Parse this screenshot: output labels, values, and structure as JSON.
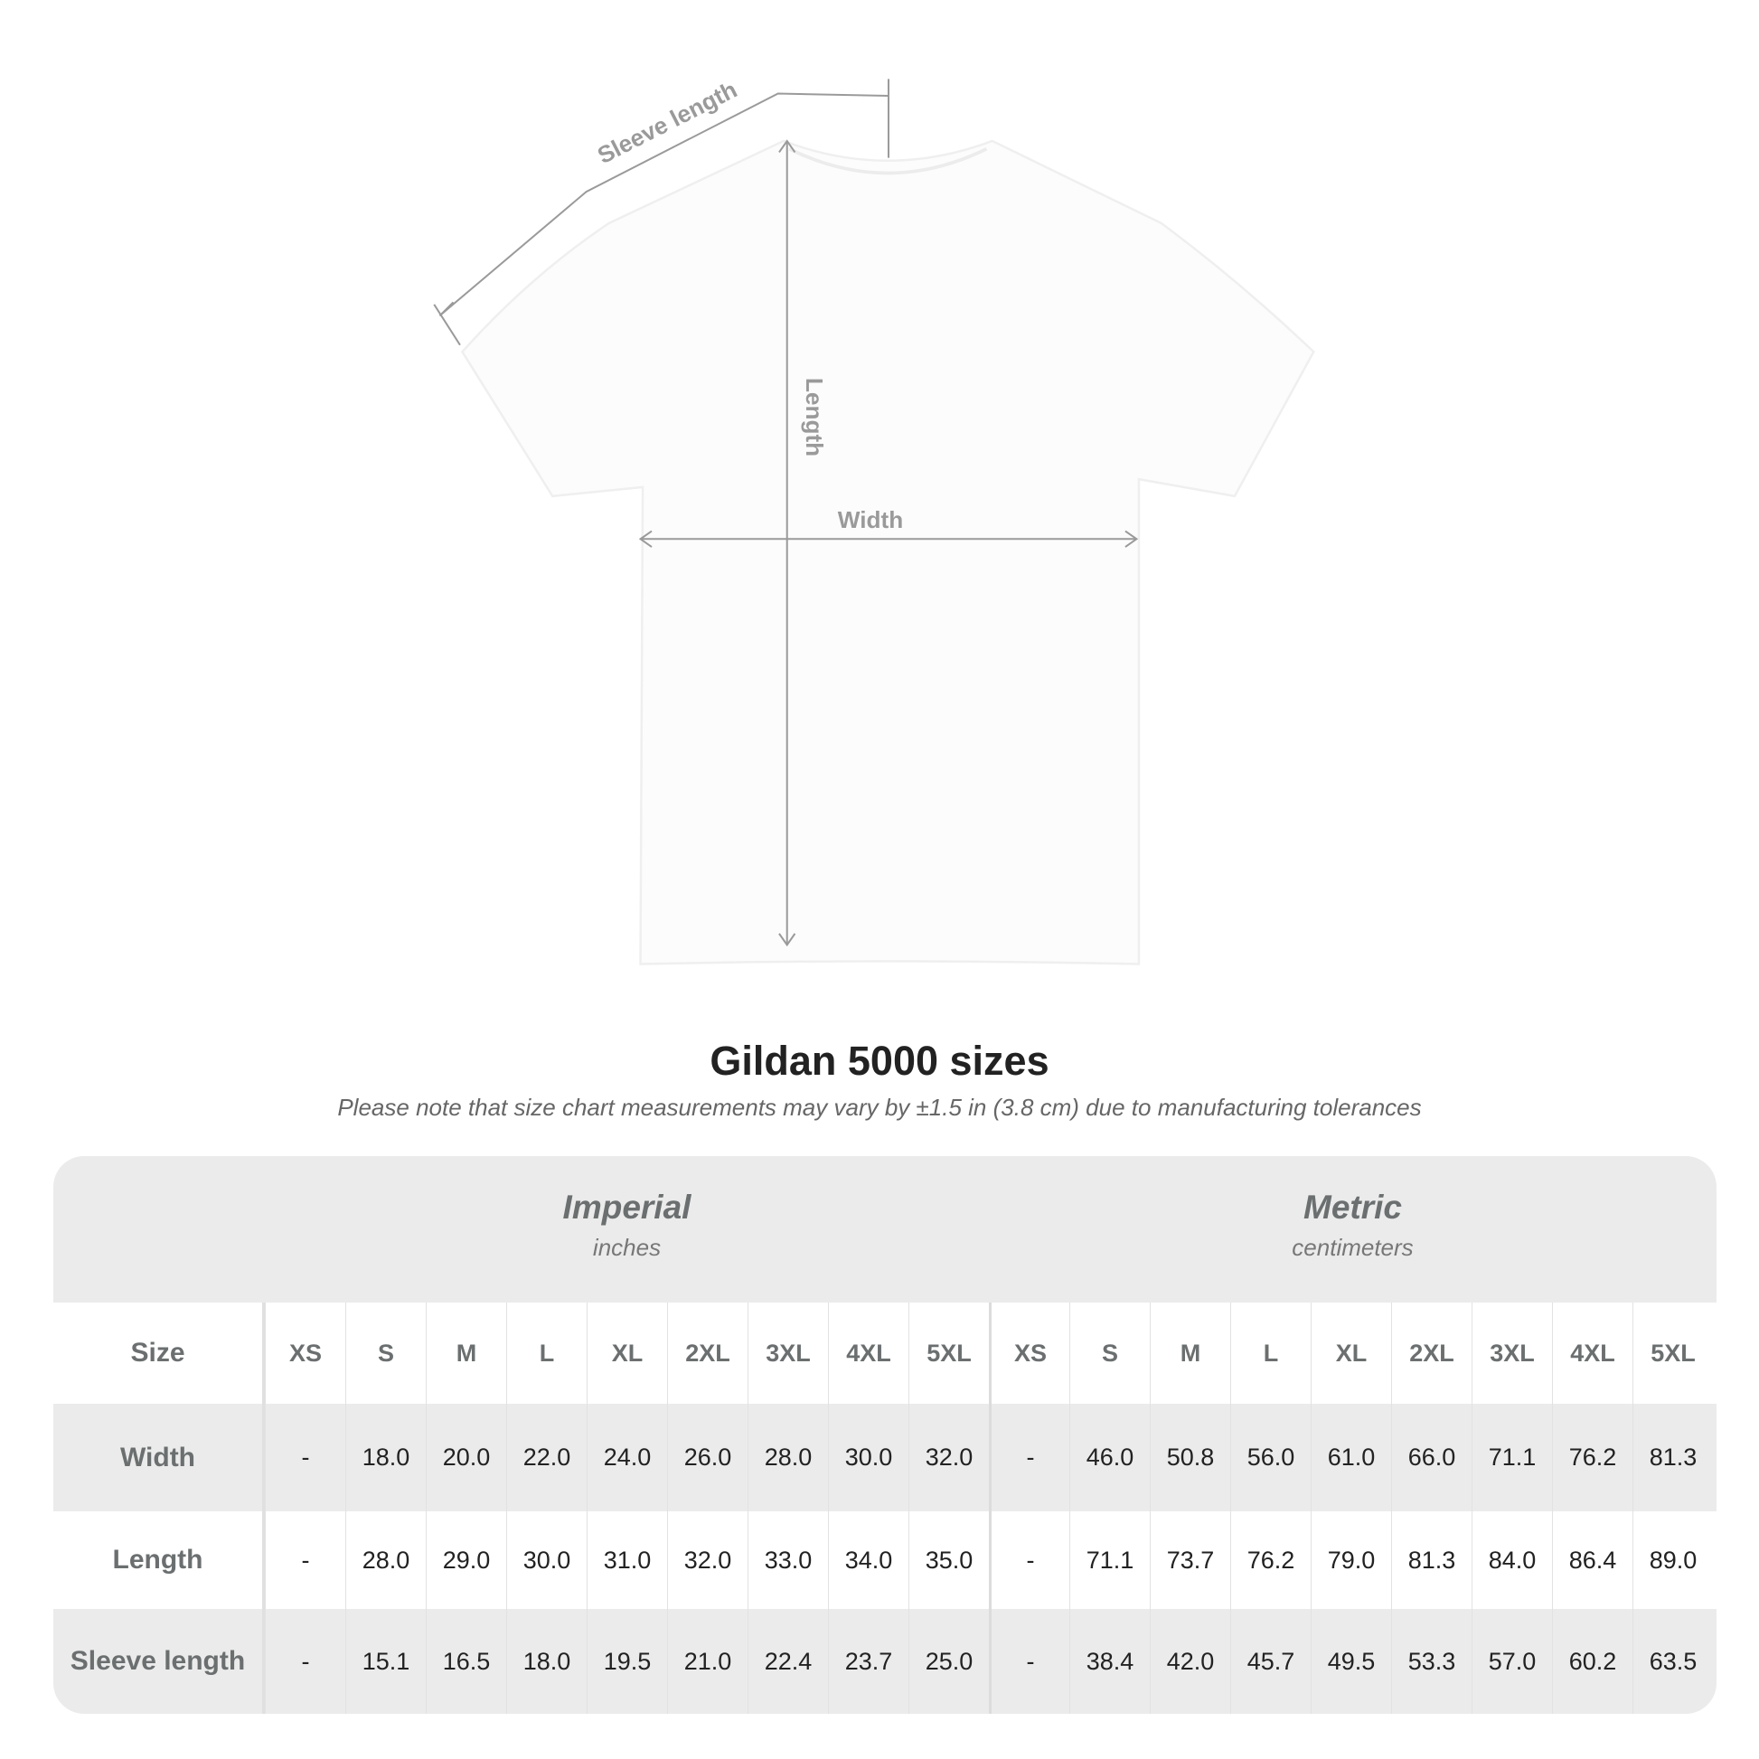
{
  "diagram": {
    "sleeve_label": "Sleeve length",
    "length_label": "Length",
    "width_label": "Width"
  },
  "title": "Gildan 5000 sizes",
  "subtitle": "Please note that size chart measurements may vary by ±1.5 in (3.8 cm) due to manufacturing tolerances",
  "table": {
    "imperial": {
      "name": "Imperial",
      "unit": "inches"
    },
    "metric": {
      "name": "Metric",
      "unit": "centimeters"
    },
    "size_label": "Size",
    "sizes": [
      "XS",
      "S",
      "M",
      "L",
      "XL",
      "2XL",
      "3XL",
      "4XL",
      "5XL",
      "XS",
      "S",
      "M",
      "L",
      "XL",
      "2XL",
      "3XL",
      "4XL",
      "5XL"
    ],
    "rows": [
      {
        "label": "Width",
        "values": [
          "-",
          "18.0",
          "20.0",
          "22.0",
          "24.0",
          "26.0",
          "28.0",
          "30.0",
          "32.0",
          "-",
          "46.0",
          "50.8",
          "56.0",
          "61.0",
          "66.0",
          "71.1",
          "76.2",
          "81.3"
        ]
      },
      {
        "label": "Length",
        "values": [
          "-",
          "28.0",
          "29.0",
          "30.0",
          "31.0",
          "32.0",
          "33.0",
          "34.0",
          "35.0",
          "-",
          "71.1",
          "73.7",
          "76.2",
          "79.0",
          "81.3",
          "84.0",
          "86.4",
          "89.0"
        ]
      },
      {
        "label": "Sleeve length",
        "values": [
          "-",
          "15.1",
          "16.5",
          "18.0",
          "19.5",
          "21.0",
          "22.4",
          "23.7",
          "25.0",
          "-",
          "38.4",
          "42.0",
          "45.7",
          "49.5",
          "53.3",
          "57.0",
          "60.2",
          "63.5"
        ]
      }
    ]
  },
  "colors": {
    "header_band": "#ebebeb",
    "label_text": "#6b6f70",
    "dimension_lines": "#9a9a9a"
  }
}
